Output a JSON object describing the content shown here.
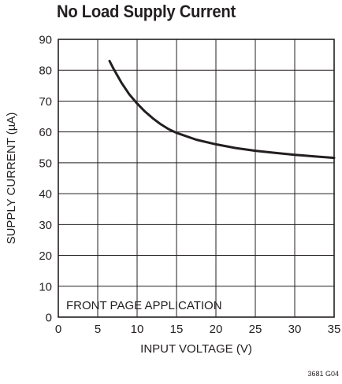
{
  "chart_data": {
    "type": "line",
    "title": "No Load Supply Current",
    "xlabel": "INPUT VOLTAGE (V)",
    "ylabel": "SUPPLY CURRENT (µA)",
    "xlim": [
      0,
      35
    ],
    "ylim": [
      0,
      90
    ],
    "xticks": [
      0,
      5,
      10,
      15,
      20,
      25,
      30,
      35
    ],
    "yticks": [
      0,
      10,
      20,
      30,
      40,
      50,
      60,
      70,
      80,
      90
    ],
    "grid": true,
    "annotations": [
      "FRONT PAGE APPLICATION"
    ],
    "figure_id": "3681 G04",
    "line_color": "#231f20",
    "series": [
      {
        "x": [
          6.5,
          7.0,
          8.0,
          9.0,
          10.0,
          11.0,
          12.0,
          13.0,
          14.0,
          15.0,
          17.5,
          20.0,
          22.5,
          25.0,
          27.5,
          30.0,
          32.5,
          35.0
        ],
        "y": [
          83.0,
          80.5,
          76.0,
          72.2,
          69.2,
          66.6,
          64.4,
          62.5,
          60.9,
          59.7,
          57.5,
          56.0,
          54.8,
          53.9,
          53.2,
          52.6,
          52.1,
          51.6
        ]
      }
    ]
  }
}
